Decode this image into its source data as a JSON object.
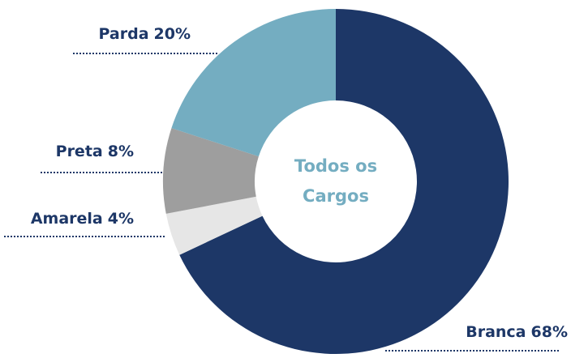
{
  "chart_data": {
    "type": "donut",
    "categories": [
      "Branca",
      "Amarela",
      "Preta",
      "Parda"
    ],
    "values": [
      68,
      4,
      8,
      20
    ],
    "value_labels": [
      "68%",
      "4%",
      "8%",
      "20%"
    ],
    "colors": [
      "#1d3767",
      "#e6e6e6",
      "#9e9e9e",
      "#74adc1"
    ],
    "center_label": [
      "Todos os",
      "Cargos"
    ]
  }
}
